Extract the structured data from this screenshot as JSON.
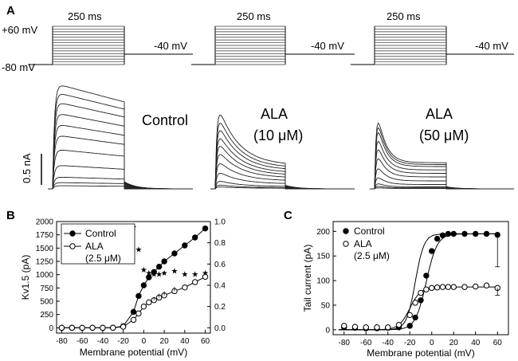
{
  "panel_labels": {
    "a": "A",
    "b": "B",
    "c": "C"
  },
  "protocol": {
    "hold_label": "-80 mV",
    "top_label": "+60 mV",
    "tail_label": "-40 mV",
    "duration_label": "250 ms"
  },
  "traces": {
    "scale_bar": "0.5 nA",
    "control_label": "Control",
    "ala10_label": "ALA",
    "ala10_conc": "(10 μM)",
    "ala50_label": "ALA",
    "ala50_conc": "(50 μM)"
  },
  "chart_data": [
    {
      "type": "line",
      "panel": "B",
      "xlabel": "Membrane potential (mV)",
      "ylabel": "Kv1.5 (pA)",
      "xlim": [
        -85,
        65
      ],
      "ylim": [
        -100,
        2000
      ],
      "y2lim": [
        -0.05,
        1.0
      ],
      "xticks": [
        -80,
        -60,
        -40,
        -20,
        0,
        20,
        40,
        60
      ],
      "yticks": [
        0,
        250,
        500,
        750,
        1000,
        1250,
        1500,
        1750,
        2000
      ],
      "y2ticks": [
        0.0,
        0.2,
        0.4,
        0.6,
        0.8,
        1.0
      ],
      "x": [
        -80,
        -70,
        -60,
        -50,
        -40,
        -30,
        -20,
        -10,
        -5,
        0,
        5,
        10,
        15,
        20,
        30,
        40,
        50,
        60
      ],
      "series": [
        {
          "name": "Control",
          "marker": "filled",
          "values": [
            0,
            0,
            0,
            0,
            0,
            2,
            30,
            300,
            600,
            800,
            950,
            1050,
            1150,
            1250,
            1400,
            1550,
            1700,
            1870
          ]
        },
        {
          "name": "ALA",
          "marker": "open",
          "values": [
            0,
            0,
            0,
            0,
            0,
            0,
            20,
            150,
            270,
            400,
            480,
            520,
            570,
            610,
            690,
            760,
            860,
            960
          ]
        }
      ],
      "star_series": {
        "axis": "right",
        "x": [
          -10,
          -5,
          0,
          5,
          10,
          15,
          20,
          30,
          40,
          50,
          60
        ],
        "values": [
          0.95,
          0.74,
          0.55,
          0.52,
          0.51,
          0.51,
          0.52,
          0.54,
          0.51,
          0.51,
          0.52
        ]
      },
      "star_glyph": "★",
      "legend": [
        "Control",
        "ALA",
        "(2.5 μM)"
      ],
      "legend_position": "top-left"
    },
    {
      "type": "scatter",
      "panel": "C",
      "xlabel": "Membrane potential (mV)",
      "ylabel": "Tail current (pA)",
      "xlim": [
        -90,
        70
      ],
      "ylim": [
        -10,
        220
      ],
      "xticks": [
        -80,
        -60,
        -40,
        -20,
        0,
        20,
        40,
        60
      ],
      "yticks": [
        0,
        50,
        100,
        150,
        200
      ],
      "x": [
        -80,
        -70,
        -60,
        -50,
        -40,
        -30,
        -20,
        -15,
        -10,
        -5,
        0,
        5,
        10,
        15,
        20,
        30,
        40,
        50,
        60
      ],
      "series": [
        {
          "name": "Control",
          "marker": "filled",
          "values": [
            5,
            4,
            3,
            3,
            4,
            5,
            8,
            25,
            60,
            110,
            160,
            185,
            192,
            195,
            195,
            195,
            195,
            195,
            193
          ],
          "fit": {
            "v_half": -5,
            "slope": 5,
            "max": 195
          }
        },
        {
          "name": "ALA",
          "marker": "open",
          "values": [
            8,
            6,
            5,
            5,
            5,
            10,
            30,
            55,
            75,
            82,
            85,
            86,
            87,
            87,
            87,
            87,
            88,
            90,
            85
          ],
          "fit": {
            "v_half": -20,
            "slope": 5,
            "max": 87
          }
        }
      ],
      "extra_fit": {
        "v_half": -15,
        "slope": 4,
        "max": 195
      },
      "legend": [
        "Control",
        "ALA",
        "(2.5 μM)"
      ],
      "legend_position": "top-left"
    }
  ]
}
